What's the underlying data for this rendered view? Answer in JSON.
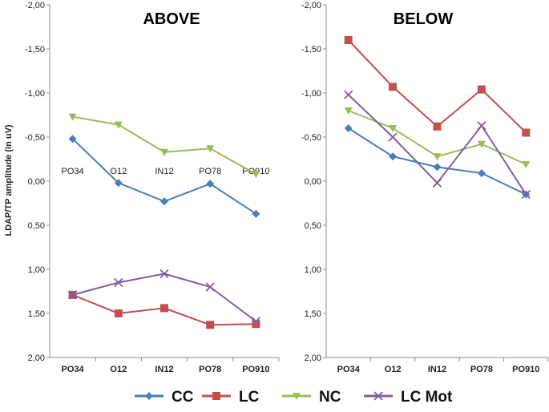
{
  "chart_data": [
    {
      "type": "line",
      "title": "ABOVE",
      "ylabel": "LDAP/TP amplitude (in uV)",
      "yaxis_inverted": true,
      "ylim": [
        -2.0,
        2.0
      ],
      "yticks": [
        "-2,00",
        "-1,50",
        "-1,00",
        "-0,50",
        "0,00",
        "0,50",
        "1,00",
        "1,50",
        "2,00"
      ],
      "categories": [
        "PO34",
        "O12",
        "IN12",
        "PO78",
        "PO910"
      ],
      "inline_category_labels": [
        "PO34",
        "O12",
        "IN12",
        "PO78",
        "PO910"
      ],
      "series": [
        {
          "name": "CC",
          "values": [
            -0.48,
            0.02,
            0.23,
            0.03,
            0.37
          ]
        },
        {
          "name": "LC",
          "values": [
            1.29,
            1.5,
            1.44,
            1.63,
            1.62
          ]
        },
        {
          "name": "NC",
          "values": [
            -0.73,
            -0.64,
            -0.33,
            -0.37,
            -0.08
          ]
        },
        {
          "name": "LC Mot",
          "values": [
            1.29,
            1.15,
            1.05,
            1.2,
            1.59
          ]
        }
      ]
    },
    {
      "type": "line",
      "title": "BELOW",
      "ylabel": "",
      "yaxis_inverted": true,
      "ylim": [
        -2.0,
        2.0
      ],
      "yticks": [
        "-2,00",
        "-1,50",
        "-1,00",
        "-0,50",
        "0,00",
        "0,50",
        "1,00",
        "1,50",
        "2,00"
      ],
      "categories": [
        "PO34",
        "O12",
        "IN12",
        "PO78",
        "PO910"
      ],
      "series": [
        {
          "name": "CC",
          "values": [
            -0.6,
            -0.28,
            -0.16,
            -0.09,
            0.15
          ]
        },
        {
          "name": "LC",
          "values": [
            -1.6,
            -1.07,
            -0.62,
            -1.04,
            -0.55
          ]
        },
        {
          "name": "NC",
          "values": [
            -0.8,
            -0.6,
            -0.28,
            -0.42,
            -0.19
          ]
        },
        {
          "name": "LC Mot",
          "values": [
            -0.98,
            -0.5,
            0.02,
            -0.63,
            0.15
          ]
        }
      ]
    }
  ],
  "legend": [
    {
      "name": "CC",
      "color": "#4a7ebb",
      "marker": "diamond"
    },
    {
      "name": "LC",
      "color": "#c0504d",
      "marker": "square"
    },
    {
      "name": "NC",
      "color": "#9bbb59",
      "marker": "triangle-down"
    },
    {
      "name": "LC Mot",
      "color": "#7f5fa0",
      "marker": "x"
    }
  ]
}
